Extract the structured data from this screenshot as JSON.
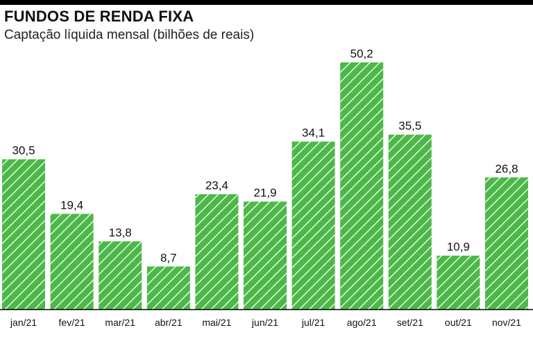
{
  "chart_data": {
    "type": "bar",
    "title": "FUNDOS DE RENDA FIXA",
    "subtitle": "Captação líquida mensal (bilhões de reais)",
    "categories": [
      "jan/21",
      "fev/21",
      "mar/21",
      "abr/21",
      "mai/21",
      "jun/21",
      "jul/21",
      "ago/21",
      "set/21",
      "out/21",
      "nov/21"
    ],
    "values": [
      30.5,
      19.4,
      13.8,
      8.7,
      23.4,
      21.9,
      34.1,
      50.2,
      35.5,
      10.9,
      26.8
    ],
    "value_labels": [
      "30,5",
      "19,4",
      "13,8",
      "8,7",
      "23,4",
      "21,9",
      "34,1",
      "50,2",
      "35,5",
      "10,9",
      "26,8"
    ],
    "xlabel": "",
    "ylabel": "",
    "ylim": [
      0,
      50.2
    ],
    "grid": false,
    "legend": "none",
    "colors": {
      "bar": "#4cb848",
      "hatch": "#ffffff",
      "baseline": "#000000",
      "text": "#111111"
    }
  }
}
